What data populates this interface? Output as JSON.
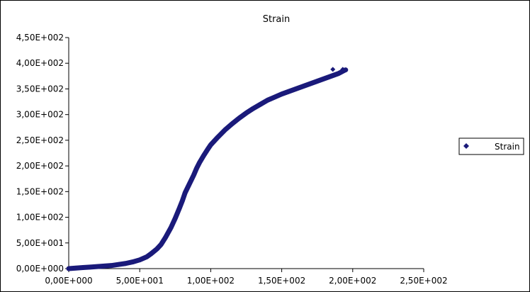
{
  "chart_data": {
    "type": "scatter",
    "title": "Strain",
    "xlabel": "",
    "ylabel": "",
    "xlim": [
      0,
      250
    ],
    "ylim": [
      0,
      450
    ],
    "x_ticks": [
      0,
      50,
      100,
      150,
      200,
      250
    ],
    "y_ticks": [
      0,
      50,
      100,
      150,
      200,
      250,
      300,
      350,
      400,
      450
    ],
    "x_tick_labels": [
      "0,00E+000",
      "5,00E+001",
      "1,00E+002",
      "1,50E+002",
      "2,00E+002",
      "2,50E+002"
    ],
    "y_tick_labels": [
      "0,00E+000",
      "5,00E+001",
      "1,00E+002",
      "1,50E+002",
      "2,00E+002",
      "2,50E+002",
      "3,00E+002",
      "3,50E+002",
      "4,00E+002",
      "4,50E+002"
    ],
    "grid": false,
    "legend_position": "right",
    "series": [
      {
        "name": "Strain",
        "color": "#1a1a7a",
        "marker": "diamond",
        "x": [
          0,
          5,
          10,
          15,
          20,
          25,
          30,
          35,
          40,
          45,
          50,
          55,
          58,
          62,
          65,
          68,
          72,
          75,
          78,
          80,
          82,
          85,
          88,
          90,
          92,
          95,
          98,
          100,
          105,
          110,
          115,
          120,
          125,
          130,
          135,
          140,
          145,
          150,
          155,
          160,
          165,
          170,
          175,
          180,
          185,
          190,
          192,
          194,
          195,
          193,
          186
        ],
        "y": [
          0,
          1,
          2,
          3,
          4,
          5,
          6,
          8,
          10,
          13,
          17,
          23,
          29,
          38,
          47,
          60,
          80,
          98,
          118,
          132,
          148,
          165,
          182,
          195,
          206,
          220,
          233,
          241,
          256,
          270,
          282,
          293,
          303,
          312,
          320,
          328,
          334,
          340,
          345,
          350,
          355,
          360,
          365,
          370,
          375,
          380,
          383,
          386,
          387,
          388,
          388
        ]
      }
    ]
  }
}
